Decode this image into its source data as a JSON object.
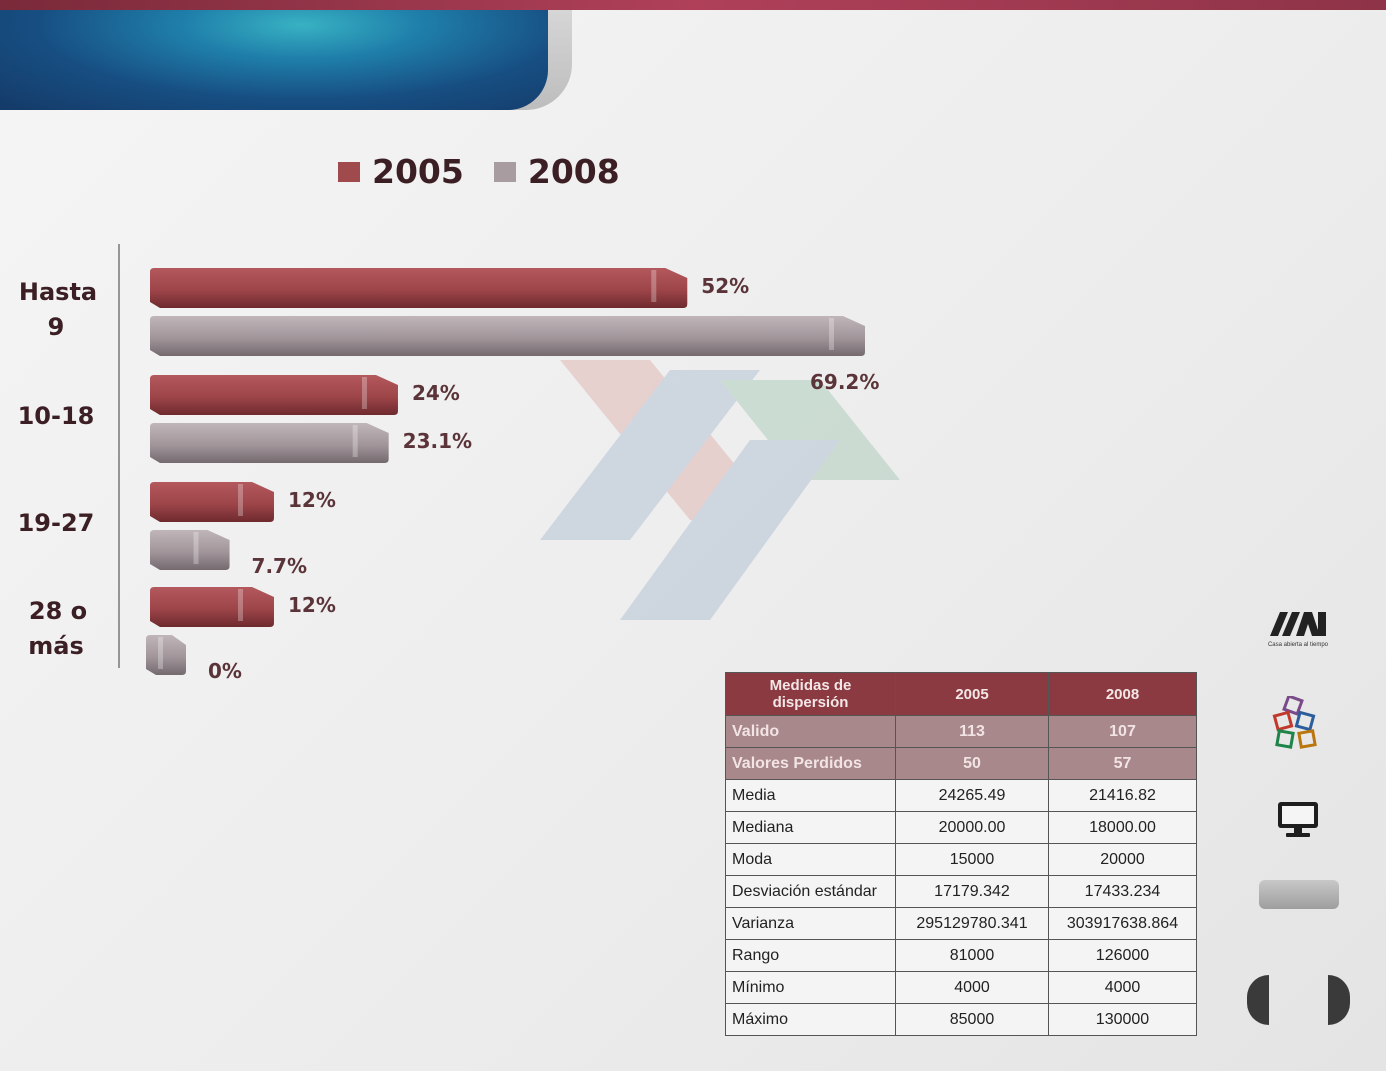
{
  "chart_data": {
    "type": "bar",
    "orientation": "horizontal",
    "categories": [
      "Hasta 9",
      "10-18",
      "19-27",
      "28 o más"
    ],
    "category_lines": [
      [
        "Hasta",
        "9"
      ],
      [
        "10-18"
      ],
      [
        "19-27"
      ],
      [
        "28 o",
        "más"
      ]
    ],
    "series": [
      {
        "name": "2005",
        "color": "#a04a4e",
        "values": [
          52,
          24,
          12,
          12
        ],
        "labels": [
          "52%",
          "24%",
          "12%",
          "12%"
        ]
      },
      {
        "name": "2008",
        "color": "#a89ca0",
        "values": [
          69.2,
          23.1,
          7.7,
          0
        ],
        "labels": [
          "69.2%",
          "23.1%",
          "7.7%",
          "0%"
        ]
      }
    ],
    "legend": "top",
    "grid": false
  },
  "table": {
    "headers": [
      "Medidas  de dispersión",
      "2005",
      "2008"
    ],
    "rows": [
      {
        "label": "Valido",
        "a": "113",
        "b": "107",
        "shaded": true
      },
      {
        "label": "Valores Perdidos",
        "a": "50",
        "b": "57",
        "shaded": true
      },
      {
        "label": "Media",
        "a": "24265.49",
        "b": "21416.82",
        "shaded": false
      },
      {
        "label": "Mediana",
        "a": "20000.00",
        "b": "18000.00",
        "shaded": false
      },
      {
        "label": "Moda",
        "a": "15000",
        "b": "20000",
        "shaded": false
      },
      {
        "label": "Desviación estándar",
        "a": "17179.342",
        "b": "17433.234",
        "shaded": false
      },
      {
        "label": "Varianza",
        "a": "295129780.341",
        "b": "303917638.864",
        "shaded": false
      },
      {
        "label": "Rango",
        "a": "81000",
        "b": "126000",
        "shaded": false
      },
      {
        "label": "Mínimo",
        "a": "4000",
        "b": "4000",
        "shaded": false
      },
      {
        "label": "Máximo",
        "a": "85000",
        "b": "130000",
        "shaded": false
      }
    ]
  },
  "logo": {
    "tagline": "Casa abierta al tiempo"
  },
  "icons": {
    "logo": "uam-logo-icon",
    "cubes": "cubes-logo-icon",
    "monitor": "monitor-icon",
    "prev": "prev-arrow-icon",
    "next": "next-arrow-icon"
  }
}
